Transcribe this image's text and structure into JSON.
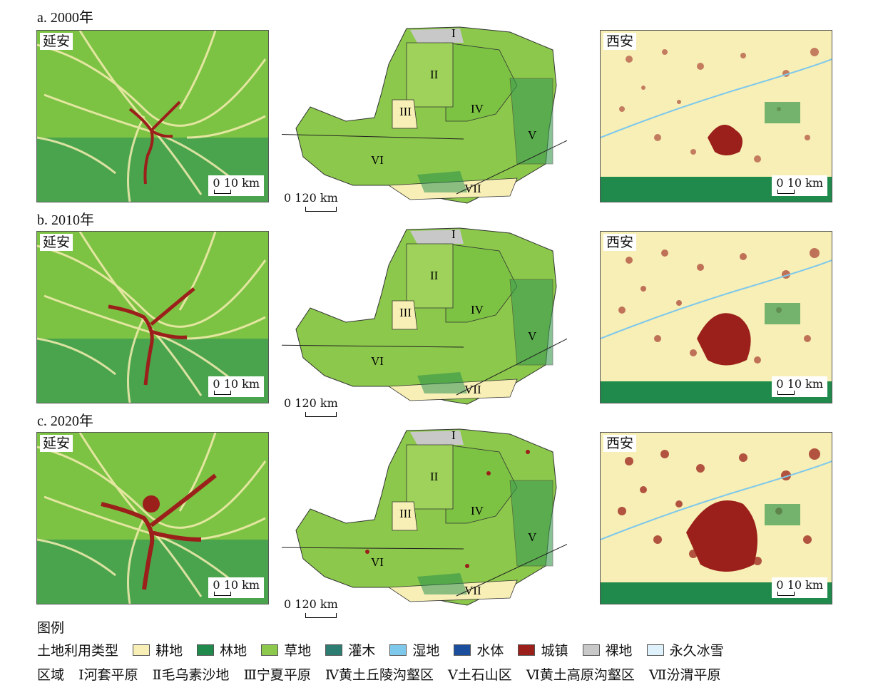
{
  "rows": [
    {
      "title": "a. 2000年",
      "stage": "2000"
    },
    {
      "title": "b. 2010年",
      "stage": "2010"
    },
    {
      "title": "c. 2020年",
      "stage": "2020"
    }
  ],
  "left_panel": {
    "city": "延安",
    "scale": "0  10 km"
  },
  "right_panel": {
    "city": "西安",
    "scale": "0  10 km"
  },
  "center_map": {
    "scale": "0      120 km",
    "regions": [
      "I",
      "II",
      "III",
      "IV",
      "V",
      "VI",
      "VII"
    ]
  },
  "legend": {
    "title": "图例",
    "landuse_label": "土地利用类型",
    "landuse": [
      {
        "label": "耕地",
        "color": "#f7efb5"
      },
      {
        "label": "林地",
        "color": "#1f8a4c"
      },
      {
        "label": "草地",
        "color": "#8cc84b"
      },
      {
        "label": "灌木",
        "color": "#2e7d72"
      },
      {
        "label": "湿地",
        "color": "#7ec8ec"
      },
      {
        "label": "水体",
        "color": "#1b4e9c"
      },
      {
        "label": "城镇",
        "color": "#9b1f1a"
      },
      {
        "label": "裸地",
        "color": "#c8c8c8"
      },
      {
        "label": "永久冰雪",
        "color": "#dff1fb"
      }
    ],
    "region_label": "区域",
    "regions": [
      "Ⅰ河套平原",
      "Ⅱ毛乌素沙地",
      "Ⅲ宁夏平原",
      "Ⅳ黄土丘陵沟壑区",
      "Ⅴ土石山区",
      "Ⅵ黄土高原沟壑区",
      "Ⅶ汾渭平原"
    ]
  }
}
